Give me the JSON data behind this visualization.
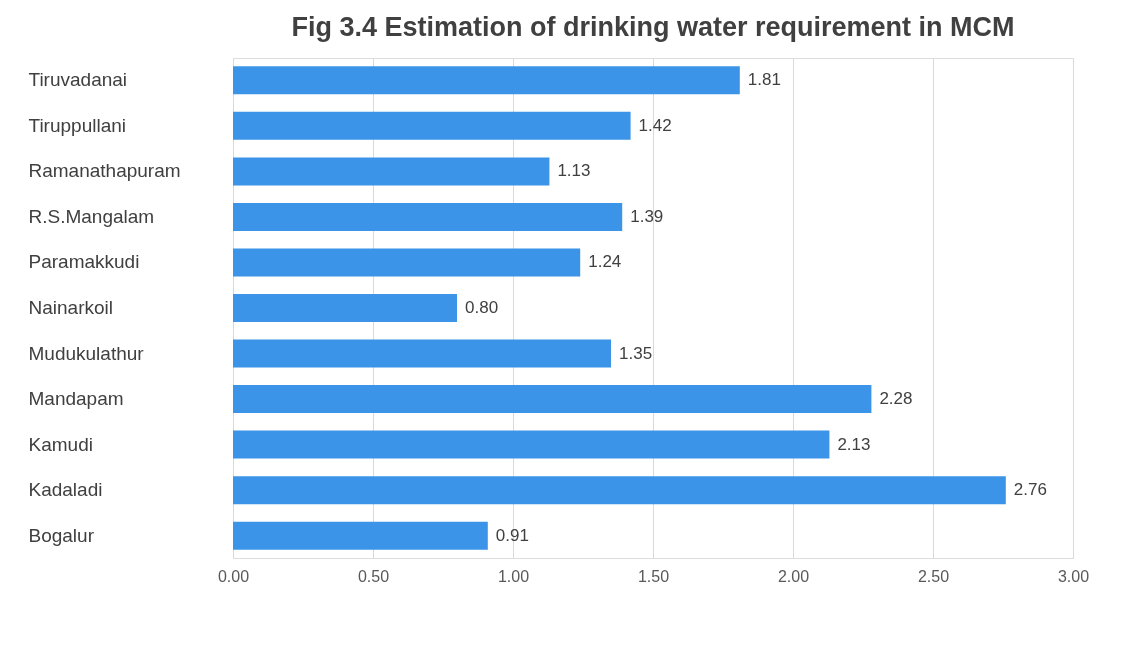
{
  "chart_data": {
    "type": "bar",
    "orientation": "horizontal",
    "title": "Fig 3.4 Estimation of drinking water requirement in MCM",
    "categories": [
      "Tiruvadanai",
      "Tiruppullani",
      "Ramanathapuram",
      "R.S.Mangalam",
      "Paramakkudi",
      "Nainarkoil",
      "Mudukulathur",
      "Mandapam",
      "Kamudi",
      "Kadaladi",
      "Bogalur"
    ],
    "values": [
      1.81,
      1.42,
      1.13,
      1.39,
      1.24,
      0.8,
      1.35,
      2.28,
      2.13,
      2.76,
      0.91
    ],
    "value_labels": [
      "1.81",
      "1.42",
      "1.13",
      "1.39",
      "1.24",
      "0.80",
      "1.35",
      "2.28",
      "2.13",
      "2.76",
      "0.91"
    ],
    "color": "#3b94e8",
    "xlim": [
      0,
      3
    ],
    "xticks": [
      {
        "value": 0,
        "label": "0.00"
      },
      {
        "value": 0.5,
        "label": "0.50"
      },
      {
        "value": 1,
        "label": "1.00"
      },
      {
        "value": 1.5,
        "label": "1.50"
      },
      {
        "value": 2,
        "label": "2.00"
      },
      {
        "value": 2.5,
        "label": "2.50"
      },
      {
        "value": 3,
        "label": "3.00"
      }
    ],
    "grid": "x"
  }
}
